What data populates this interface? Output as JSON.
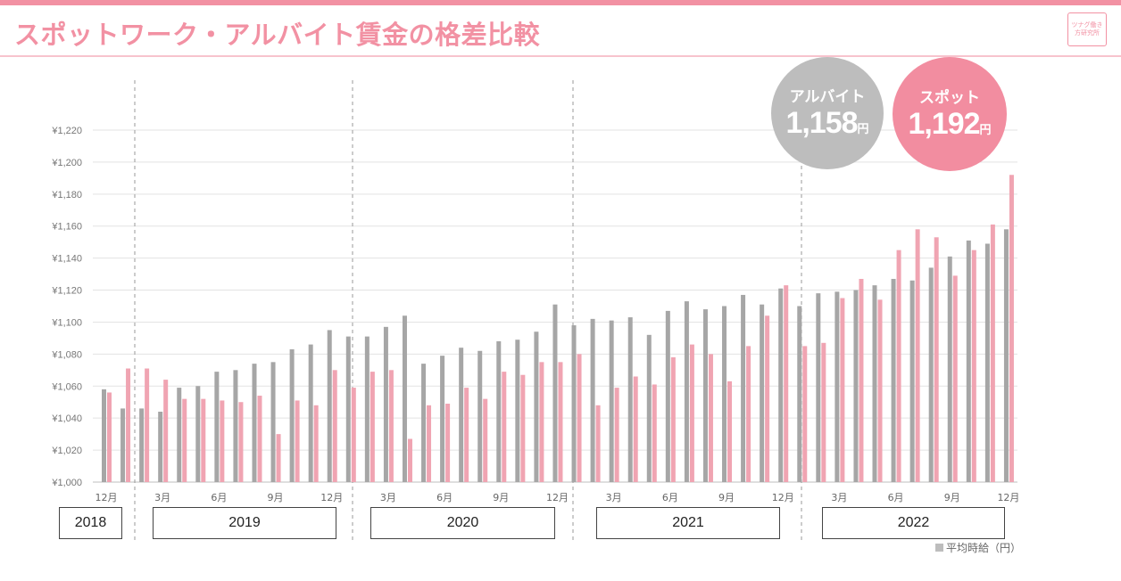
{
  "page": {
    "title": "スポットワーク・アルバイト賃金の格差比較",
    "logo_text": "ツナグ働き方研究所",
    "note": "平均時給（円）"
  },
  "bubbles": {
    "arubaito": {
      "label": "アルバイト",
      "value": "1,158",
      "unit": "円",
      "color": "#bdbdbd"
    },
    "spot": {
      "label": "スポット",
      "value": "1,192",
      "unit": "円",
      "color": "#f28da0"
    }
  },
  "year_labels": [
    "2018",
    "2019",
    "2020",
    "2021",
    "2022"
  ],
  "chart_data": {
    "type": "bar",
    "ylim": [
      1000,
      1220
    ],
    "y_ticks": [
      "¥1,000",
      "¥1,020",
      "¥1,040",
      "¥1,060",
      "¥1,080",
      "¥1,100",
      "¥1,120",
      "¥1,140",
      "¥1,160",
      "¥1,180",
      "¥1,200",
      "¥1,220"
    ],
    "grid": true,
    "categories": [
      "2018-12",
      "2019-01",
      "2019-02",
      "2019-03",
      "2019-04",
      "2019-05",
      "2019-06",
      "2019-07",
      "2019-08",
      "2019-09",
      "2019-10",
      "2019-11",
      "2019-12",
      "2020-01",
      "2020-02",
      "2020-03",
      "2020-04",
      "2020-05",
      "2020-06",
      "2020-07",
      "2020-08",
      "2020-09",
      "2020-10",
      "2020-11",
      "2020-12",
      "2021-01",
      "2021-02",
      "2021-03",
      "2021-04",
      "2021-05",
      "2021-06",
      "2021-07",
      "2021-08",
      "2021-09",
      "2021-10",
      "2021-11",
      "2021-12",
      "2022-01",
      "2022-02",
      "2022-03",
      "2022-04",
      "2022-05",
      "2022-06",
      "2022-07",
      "2022-08",
      "2022-09",
      "2022-10",
      "2022-11",
      "2022-12"
    ],
    "tick_labels": {
      "0": "12月",
      "3": "3月",
      "6": "6月",
      "9": "9月",
      "12": "12月",
      "15": "3月",
      "18": "6月",
      "21": "9月",
      "24": "12月",
      "27": "3月",
      "30": "6月",
      "33": "9月",
      "36": "12月",
      "39": "3月",
      "42": "6月",
      "45": "9月",
      "48": "12月"
    },
    "series": [
      {
        "name": "アルバイト",
        "color": "#a6a6a6",
        "values": [
          1058,
          1046,
          1046,
          1044,
          1059,
          1060,
          1069,
          1070,
          1074,
          1075,
          1083,
          1086,
          1095,
          1091,
          1091,
          1097,
          1104,
          1074,
          1079,
          1084,
          1082,
          1088,
          1089,
          1094,
          1111,
          1098,
          1102,
          1101,
          1103,
          1092,
          1107,
          1113,
          1108,
          1110,
          1117,
          1111,
          1121,
          1110,
          1118,
          1119,
          1120,
          1123,
          1127,
          1126,
          1134,
          1141,
          1151,
          1149,
          1158
        ]
      },
      {
        "name": "スポット",
        "color": "#f0a4b2",
        "values": [
          1056,
          1071,
          1071,
          1064,
          1052,
          1052,
          1051,
          1050,
          1054,
          1030,
          1051,
          1048,
          1070,
          1059,
          1069,
          1070,
          1027,
          1048,
          1049,
          1059,
          1052,
          1069,
          1067,
          1075,
          1075,
          1080,
          1048,
          1059,
          1066,
          1061,
          1078,
          1086,
          1080,
          1063,
          1085,
          1104,
          1123,
          1085,
          1087,
          1115,
          1127,
          1114,
          1145,
          1158,
          1153,
          1129,
          1145,
          1161,
          1192
        ]
      }
    ]
  }
}
